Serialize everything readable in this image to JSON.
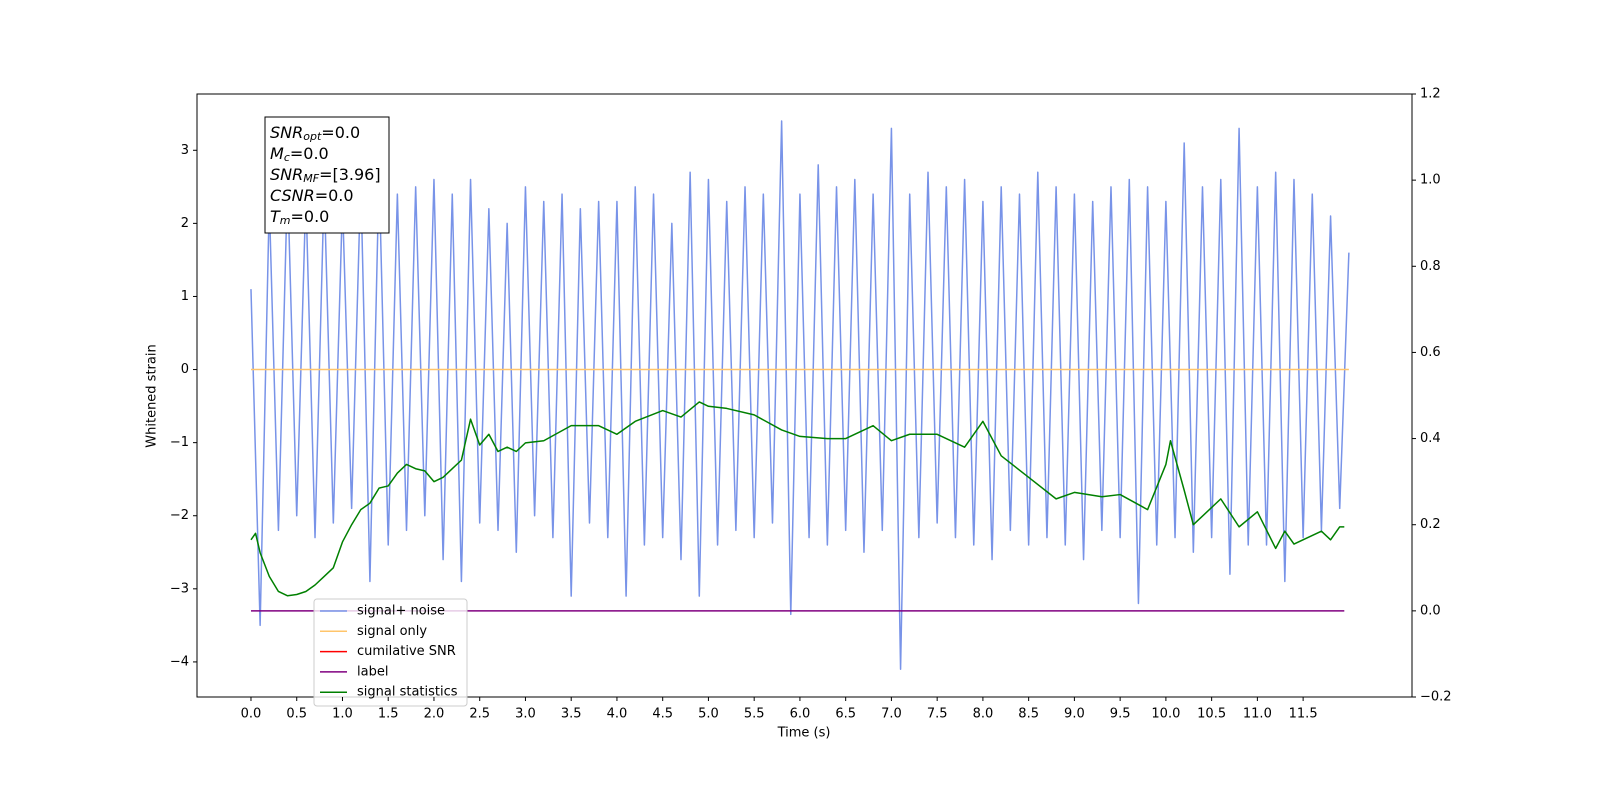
{
  "chart_data": {
    "type": "line",
    "xlabel": "Time (s)",
    "ylabel": "Whitened strain",
    "xlim": [
      -0.59,
      12.69
    ],
    "ylim": [
      -4.48,
      3.77
    ],
    "y2lim": [
      -0.2,
      1.2
    ],
    "xticks": [
      {
        "value": 0,
        "label": "0.0"
      },
      {
        "value": 0.5,
        "label": "0.5"
      },
      {
        "value": 1,
        "label": "1.0"
      },
      {
        "value": 1.5,
        "label": "1.5"
      },
      {
        "value": 2,
        "label": "2.0"
      },
      {
        "value": 2.5,
        "label": "2.5"
      },
      {
        "value": 3,
        "label": "3.0"
      },
      {
        "value": 3.5,
        "label": "3.5"
      },
      {
        "value": 4,
        "label": "4.0"
      },
      {
        "value": 4.5,
        "label": "4.5"
      },
      {
        "value": 5,
        "label": "5.0"
      },
      {
        "value": 5.5,
        "label": "5.5"
      },
      {
        "value": 6,
        "label": "6.0"
      },
      {
        "value": 6.5,
        "label": "6.5"
      },
      {
        "value": 7,
        "label": "7.0"
      },
      {
        "value": 7.5,
        "label": "7.5"
      },
      {
        "value": 8,
        "label": "8.0"
      },
      {
        "value": 8.5,
        "label": "8.5"
      },
      {
        "value": 9,
        "label": "9.0"
      },
      {
        "value": 9.5,
        "label": "9.5"
      },
      {
        "value": 10,
        "label": "10.0"
      },
      {
        "value": 10.5,
        "label": "10.5"
      },
      {
        "value": 11,
        "label": "11.0"
      },
      {
        "value": 11.5,
        "label": "11.5"
      }
    ],
    "yticks": [
      {
        "value": -4,
        "label": "−4"
      },
      {
        "value": -3,
        "label": "−3"
      },
      {
        "value": -2,
        "label": "−2"
      },
      {
        "value": -1,
        "label": "−1"
      },
      0,
      1,
      2,
      3
    ],
    "y2ticks": [
      {
        "value": -0.2,
        "label": "−0.2"
      },
      {
        "value": 0,
        "label": "0.0"
      },
      0.2,
      0.4,
      0.6,
      0.8,
      {
        "value": 1,
        "label": "1.0"
      },
      1.2
    ],
    "grid": false,
    "legend": "lower left",
    "annotation": [
      {
        "name": "SNR",
        "sub": "opt",
        "value": "=0.0"
      },
      {
        "name": "M",
        "sub": "c",
        "value": "=0.0"
      },
      {
        "name": "SNR",
        "sub": "MF",
        "value": "=[3.96]"
      },
      {
        "name": "CSNR",
        "value": "=0.0"
      },
      {
        "name": "T",
        "sub": "m",
        "value": "=0.0"
      }
    ],
    "series": [
      {
        "name": "signal+ noise",
        "color": "#7893e8",
        "axis": "y",
        "x": [
          0,
          0.1,
          0.2,
          0.3,
          0.4,
          0.5,
          0.6,
          0.7,
          0.8,
          0.9,
          1,
          1.1,
          1.2,
          1.3,
          1.4,
          1.5,
          1.6,
          1.7,
          1.8,
          1.9,
          2,
          2.1,
          2.2,
          2.3,
          2.4,
          2.5,
          2.6,
          2.7,
          2.8,
          2.9,
          3,
          3.1,
          3.2,
          3.3,
          3.4,
          3.5,
          3.6,
          3.7,
          3.8,
          3.9,
          4,
          4.1,
          4.2,
          4.3,
          4.4,
          4.5,
          4.6,
          4.7,
          4.8,
          4.9,
          5,
          5.1,
          5.2,
          5.3,
          5.4,
          5.5,
          5.6,
          5.7,
          5.8,
          5.9,
          6,
          6.1,
          6.2,
          6.3,
          6.4,
          6.5,
          6.6,
          6.7,
          6.8,
          6.9,
          7,
          7.1,
          7.2,
          7.3,
          7.4,
          7.5,
          7.6,
          7.7,
          7.8,
          7.9,
          8,
          8.1,
          8.2,
          8.3,
          8.4,
          8.5,
          8.6,
          8.7,
          8.8,
          8.9,
          9,
          9.1,
          9.2,
          9.3,
          9.4,
          9.5,
          9.6,
          9.7,
          9.8,
          9.9,
          10,
          10.1,
          10.2,
          10.3,
          10.4,
          10.5,
          10.6,
          10.7,
          10.8,
          10.9,
          11,
          11.1,
          11.2,
          11.3,
          11.4,
          11.5,
          11.6,
          11.7,
          11.8,
          11.9,
          12
        ],
        "values": [
          1.1,
          -3.5,
          2.3,
          -2.2,
          2.6,
          -2.0,
          2.4,
          -2.3,
          2.5,
          -2.1,
          2.3,
          -1.9,
          2.6,
          -2.9,
          2.7,
          -2.4,
          2.4,
          -2.2,
          2.5,
          -2.0,
          2.6,
          -2.6,
          2.4,
          -2.9,
          2.6,
          -2.1,
          2.2,
          -2.2,
          2.0,
          -2.5,
          2.5,
          -2.0,
          2.3,
          -2.3,
          2.4,
          -3.1,
          2.2,
          -2.1,
          2.3,
          -2.3,
          2.3,
          -3.1,
          2.5,
          -2.4,
          2.4,
          -2.3,
          2.0,
          -2.6,
          2.7,
          -3.1,
          2.6,
          -2.4,
          2.3,
          -2.2,
          2.5,
          -2.3,
          2.4,
          -2.1,
          3.4,
          -3.35,
          2.4,
          -2.3,
          2.8,
          -2.4,
          2.5,
          -2.2,
          2.6,
          -2.5,
          2.4,
          -2.2,
          3.3,
          -4.1,
          2.4,
          -2.3,
          2.7,
          -2.1,
          2.5,
          -2.3,
          2.6,
          -2.4,
          2.3,
          -2.6,
          2.5,
          -2.2,
          2.4,
          -2.4,
          2.7,
          -2.3,
          2.5,
          -2.4,
          2.4,
          -2.6,
          2.3,
          -2.2,
          2.5,
          -2.3,
          2.6,
          -3.2,
          2.5,
          -2.4,
          2.3,
          -2.3,
          3.1,
          -2.5,
          2.5,
          -2.3,
          2.6,
          -2.8,
          3.3,
          -2.4,
          2.5,
          -2.4,
          2.7,
          -2.9,
          2.6,
          -2.3,
          2.4,
          -2.2,
          2.1,
          -1.9,
          1.6
        ]
      },
      {
        "name": "signal only",
        "color": "#ffc56b",
        "axis": "y",
        "x": [
          0,
          12
        ],
        "values": [
          0,
          0
        ]
      },
      {
        "name": "cumilative SNR",
        "color": "#ff0000",
        "axis": "y2",
        "x": [],
        "values": []
      },
      {
        "name": "label",
        "color": "#800080",
        "axis": "y2",
        "x": [
          0,
          11.95
        ],
        "values": [
          0,
          0
        ]
      },
      {
        "name": "signal statistics",
        "color": "#008000",
        "axis": "y2",
        "x": [
          0,
          0.05,
          0.1,
          0.2,
          0.3,
          0.4,
          0.5,
          0.6,
          0.7,
          0.8,
          0.9,
          1.0,
          1.1,
          1.2,
          1.3,
          1.4,
          1.5,
          1.6,
          1.7,
          1.8,
          1.9,
          2.0,
          2.1,
          2.2,
          2.3,
          2.4,
          2.5,
          2.6,
          2.7,
          2.8,
          2.9,
          3.0,
          3.2,
          3.5,
          3.8,
          4.0,
          4.2,
          4.5,
          4.7,
          4.9,
          5.0,
          5.2,
          5.5,
          5.8,
          6.0,
          6.3,
          6.5,
          6.8,
          7.0,
          7.2,
          7.5,
          7.8,
          8.0,
          8.2,
          8.5,
          8.8,
          9.0,
          9.3,
          9.5,
          9.8,
          10.0,
          10.05,
          10.2,
          10.3,
          10.6,
          10.8,
          11.0,
          11.2,
          11.3,
          11.4,
          11.7,
          11.8,
          11.9,
          11.95
        ],
        "values": [
          0.165,
          0.18,
          0.135,
          0.08,
          0.045,
          0.035,
          0.038,
          0.045,
          0.06,
          0.08,
          0.1,
          0.16,
          0.2,
          0.235,
          0.25,
          0.285,
          0.29,
          0.32,
          0.34,
          0.33,
          0.325,
          0.3,
          0.31,
          0.33,
          0.35,
          0.445,
          0.385,
          0.41,
          0.37,
          0.38,
          0.37,
          0.39,
          0.395,
          0.43,
          0.43,
          0.41,
          0.44,
          0.465,
          0.45,
          0.485,
          0.475,
          0.47,
          0.455,
          0.42,
          0.405,
          0.4,
          0.4,
          0.43,
          0.395,
          0.41,
          0.41,
          0.38,
          0.44,
          0.36,
          0.31,
          0.26,
          0.275,
          0.265,
          0.27,
          0.235,
          0.34,
          0.395,
          0.28,
          0.2,
          0.26,
          0.195,
          0.23,
          0.145,
          0.185,
          0.155,
          0.185,
          0.165,
          0.195,
          0.195
        ]
      }
    ]
  }
}
